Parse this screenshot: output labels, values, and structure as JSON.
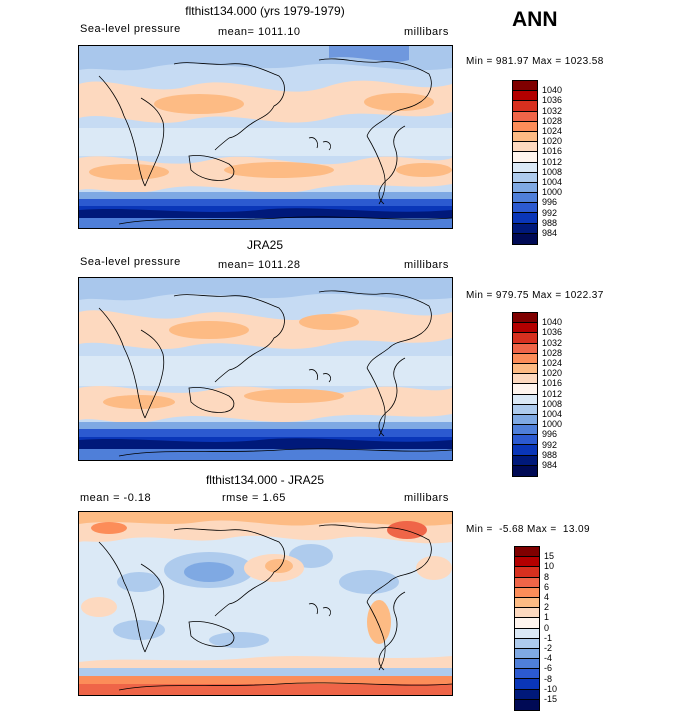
{
  "season": "ANN",
  "panels": [
    {
      "title": "flthist134.000 (yrs 1979-1979)",
      "left": "Sea-level pressure",
      "center": "mean= 1011.10",
      "right": "millibars",
      "stats": "Min = 981.97 Max = 1023.58",
      "levels": [
        "1040",
        "1036",
        "1032",
        "1028",
        "1024",
        "1020",
        "1016",
        "1012",
        "1008",
        "1004",
        "1000",
        "996",
        "992",
        "988",
        "984"
      ],
      "colors": [
        "#7f0000",
        "#b30000",
        "#d7301f",
        "#ef6548",
        "#fc8d59",
        "#fdbb84",
        "#fdd9bf",
        "#fff5ee",
        "#dbe9f6",
        "#aecbed",
        "#7fa9e3",
        "#4f7fd9",
        "#2c5ad0",
        "#0a36b8",
        "#00197a",
        "#000a55"
      ]
    },
    {
      "title": "JRA25",
      "left": "Sea-level pressure",
      "center": "mean= 1011.28",
      "right": "millibars",
      "stats": "Min = 979.75 Max = 1022.37",
      "levels": [
        "1040",
        "1036",
        "1032",
        "1028",
        "1024",
        "1020",
        "1016",
        "1012",
        "1008",
        "1004",
        "1000",
        "996",
        "992",
        "988",
        "984"
      ],
      "colors": [
        "#7f0000",
        "#b30000",
        "#d7301f",
        "#ef6548",
        "#fc8d59",
        "#fdbb84",
        "#fdd9bf",
        "#fff5ee",
        "#dbe9f6",
        "#aecbed",
        "#7fa9e3",
        "#4f7fd9",
        "#2c5ad0",
        "#0a36b8",
        "#00197a",
        "#000a55"
      ]
    },
    {
      "title": "flthist134.000 - JRA25",
      "left": "mean =  -0.18",
      "center": "rmse =   1.65",
      "right": "millibars",
      "stats": "Min =  -5.68 Max =  13.09",
      "levels": [
        "15",
        "10",
        "8",
        "6",
        "4",
        "2",
        "1",
        "0",
        "-1",
        "-2",
        "-4",
        "-6",
        "-8",
        "-10",
        "-15"
      ],
      "colors": [
        "#7f0000",
        "#b30000",
        "#d7301f",
        "#ef6548",
        "#fc8d59",
        "#fdbb84",
        "#fdd9bf",
        "#fff5ee",
        "#dbe9f6",
        "#aecbed",
        "#7fa9e3",
        "#4f7fd9",
        "#2c5ad0",
        "#0a36b8",
        "#00197a",
        "#000a55"
      ]
    }
  ]
}
